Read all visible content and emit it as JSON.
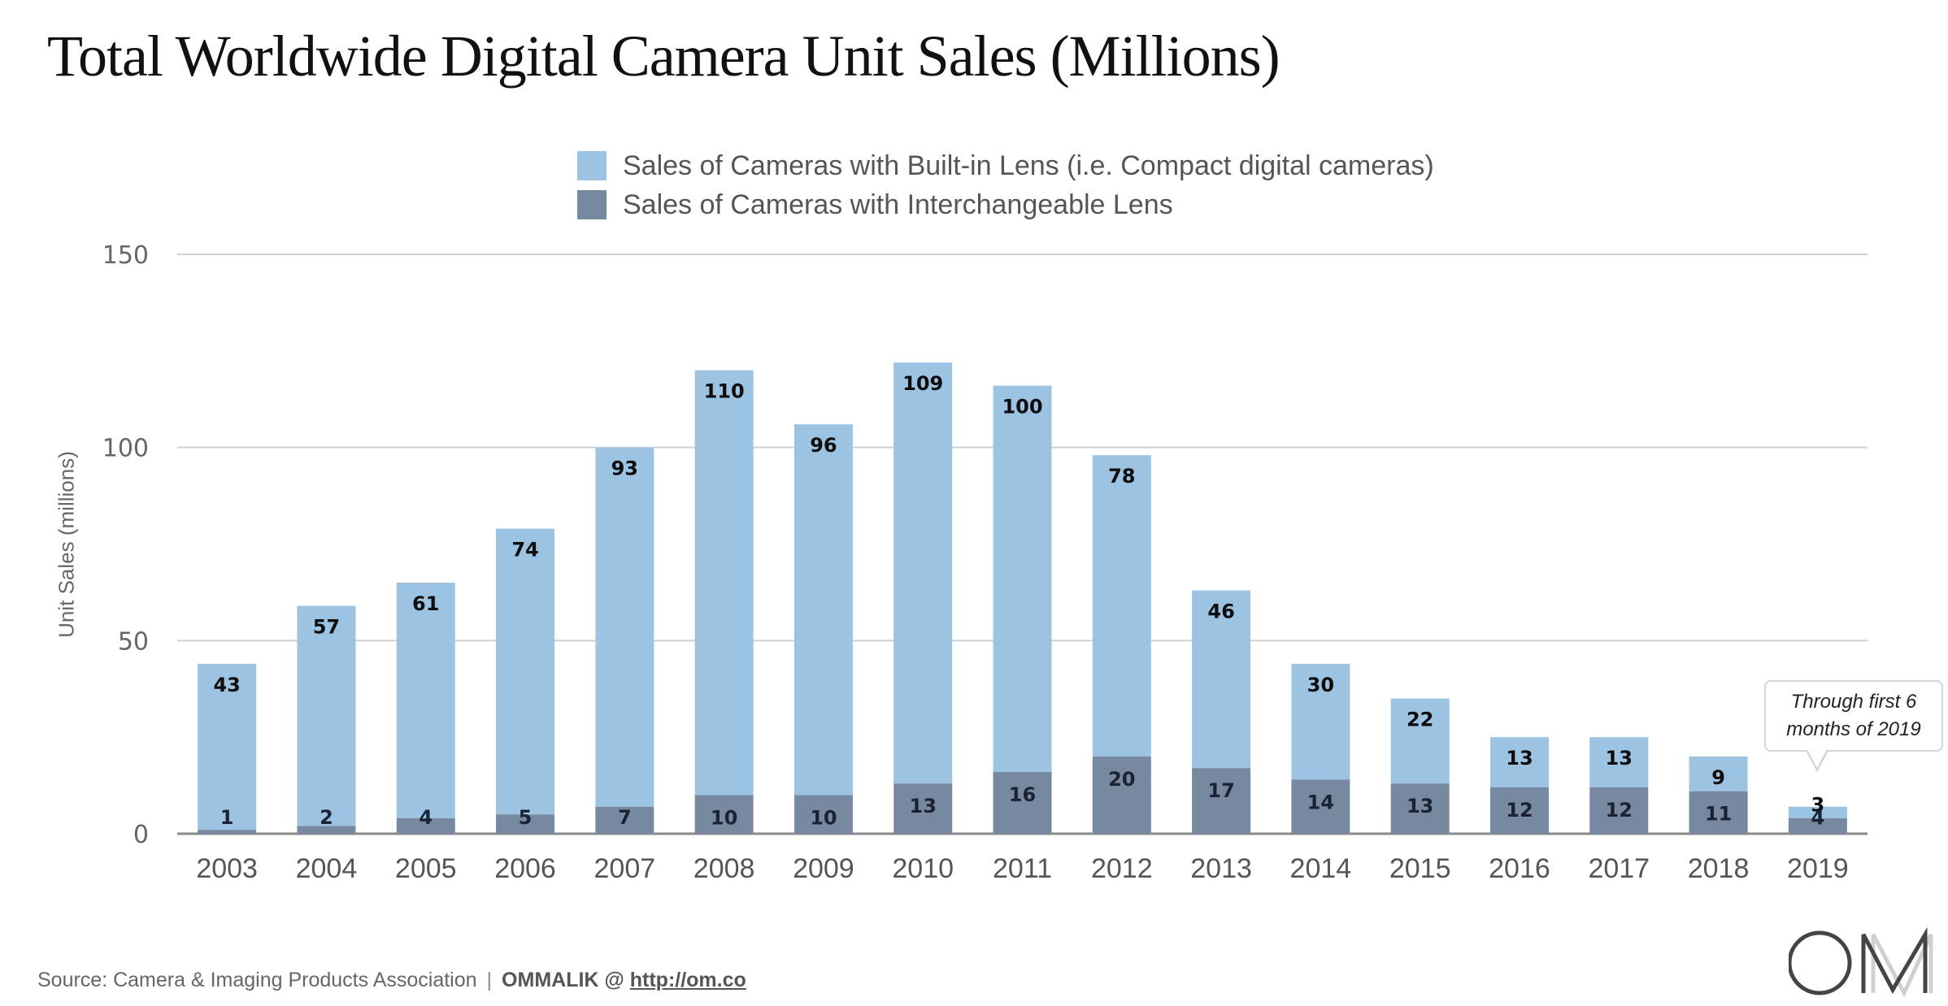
{
  "title": "Total Worldwide Digital Camera Unit Sales (Millions)",
  "legend": [
    {
      "label": "Sales of Cameras with Built-in Lens (i.e. Compact digital cameras)",
      "color": "#9dc3e3"
    },
    {
      "label": "Sales of Cameras with Interchangeable Lens",
      "color": "#7789a1"
    }
  ],
  "callout": {
    "line1": "Through first 6",
    "line2": "months of 2019"
  },
  "footer": {
    "source": "Source: Camera & Imaging Products Association",
    "separator": "|",
    "brand": "OMMALIK @",
    "link": "http://om.co"
  },
  "logo": {
    "text": "OM"
  },
  "chart_data": {
    "type": "bar",
    "stacked": true,
    "title": "Total Worldwide Digital Camera Unit Sales (Millions)",
    "xlabel": "",
    "ylabel": "Unit Sales (millions)",
    "ylim": [
      0,
      150
    ],
    "yticks": [
      0,
      50,
      100,
      150
    ],
    "grid": true,
    "legend_position": "top-center",
    "categories": [
      "2003",
      "2004",
      "2005",
      "2006",
      "2007",
      "2008",
      "2009",
      "2010",
      "2011",
      "2012",
      "2013",
      "2014",
      "2015",
      "2016",
      "2017",
      "2018",
      "2019"
    ],
    "series": [
      {
        "name": "Sales of Cameras with Interchangeable Lens",
        "color": "#7789a1",
        "values": [
          1,
          2,
          4,
          5,
          7,
          10,
          10,
          13,
          16,
          20,
          17,
          14,
          13,
          12,
          12,
          11,
          4
        ]
      },
      {
        "name": "Sales of Cameras with Built-in Lens (i.e. Compact digital cameras)",
        "color": "#9dc3e3",
        "values": [
          43,
          57,
          61,
          74,
          93,
          110,
          96,
          109,
          100,
          78,
          46,
          30,
          22,
          13,
          13,
          9,
          3
        ]
      }
    ],
    "annotations": [
      {
        "category": "2019",
        "text": "Through first 6 months of 2019"
      }
    ]
  }
}
